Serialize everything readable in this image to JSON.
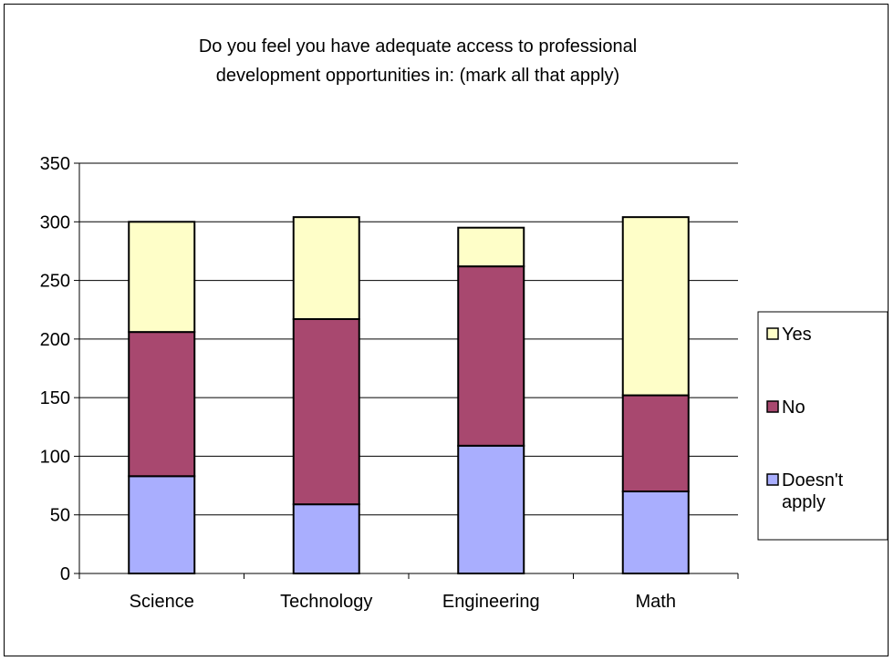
{
  "chart_data": {
    "type": "bar",
    "stacked": true,
    "title": "Do you feel you have adequate access to professional development opportunities in: (mark all that apply)",
    "title_lines": [
      "Do you feel you have adequate access to professional",
      "development opportunities in: (mark all that apply)"
    ],
    "xlabel": "",
    "ylabel": "",
    "categories": [
      "Science",
      "Technology",
      "Engineering",
      "Math"
    ],
    "series": [
      {
        "name": "Doesn't apply",
        "legend_lines": [
          "Doesn't",
          "apply"
        ],
        "color": "#a9aefe",
        "values": [
          83,
          59,
          109,
          70
        ]
      },
      {
        "name": "No",
        "legend_lines": [
          "No"
        ],
        "color": "#a8486f",
        "values": [
          123,
          158,
          153,
          82
        ]
      },
      {
        "name": "Yes",
        "legend_lines": [
          "Yes"
        ],
        "color": "#fefec8",
        "values": [
          94,
          87,
          33,
          152
        ]
      }
    ],
    "ylim": [
      0,
      350
    ],
    "yticks": [
      0,
      50,
      100,
      150,
      200,
      250,
      300,
      350
    ],
    "grid": true,
    "legend": "right"
  }
}
